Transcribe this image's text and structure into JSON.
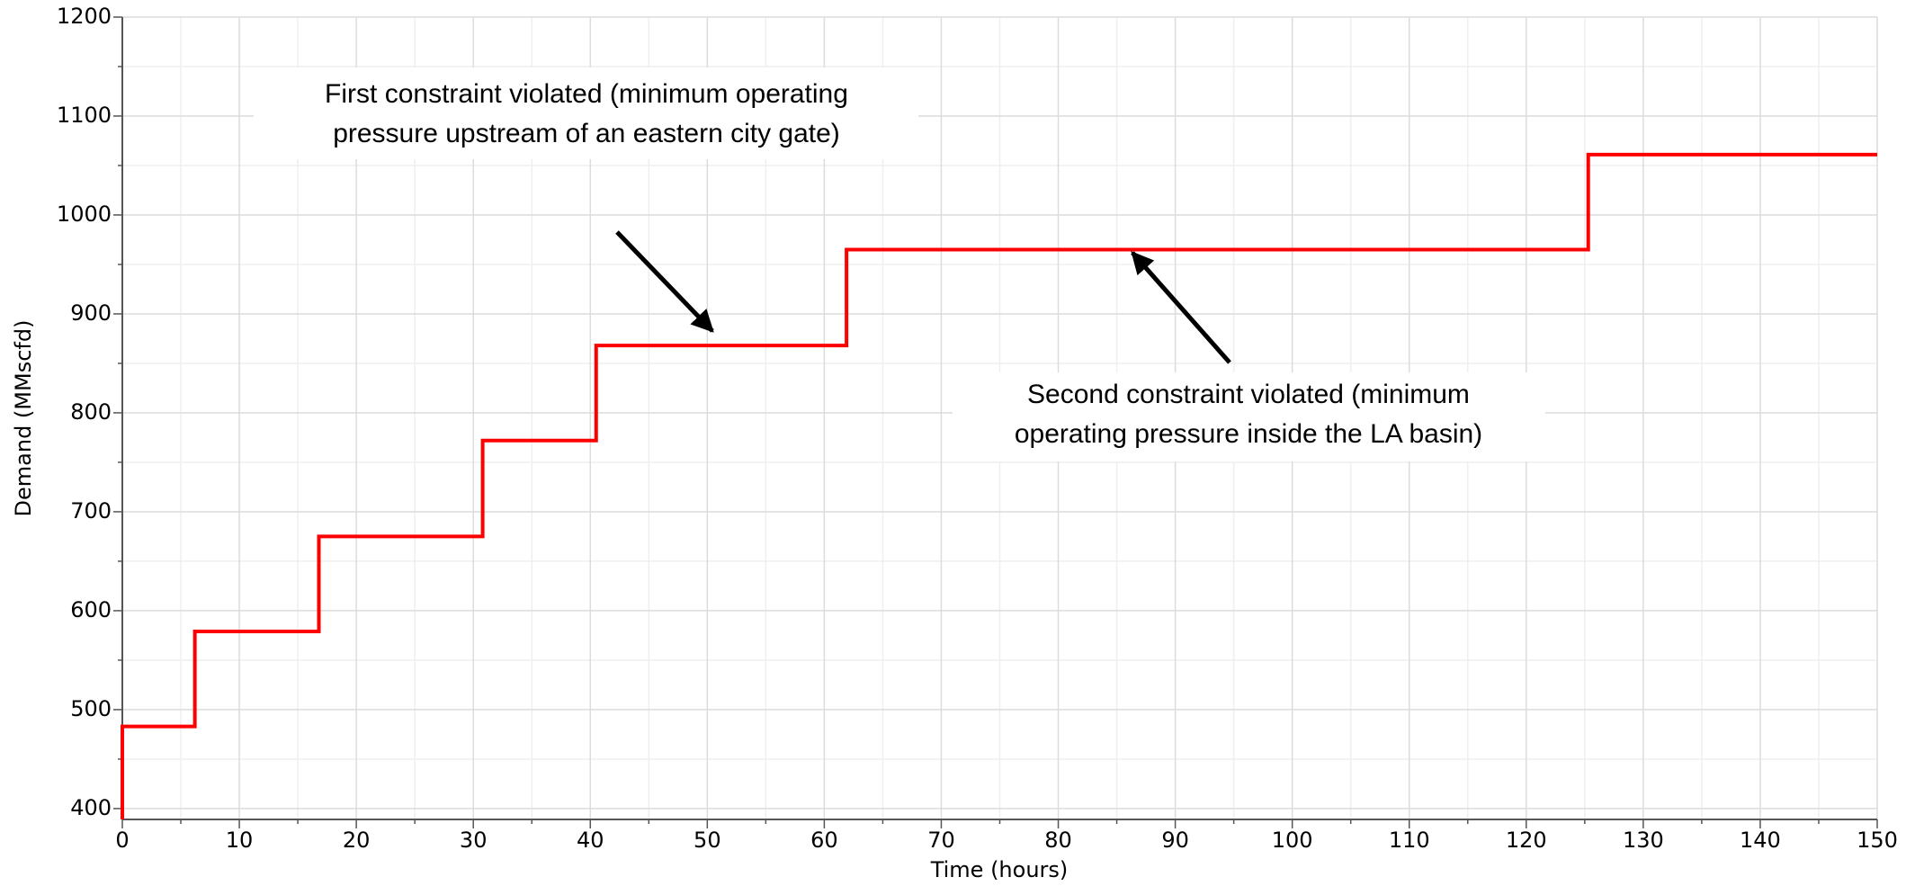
{
  "chart_data": {
    "type": "line",
    "x_label": "Time (hours)",
    "y_label": "Demand (MMscfd)",
    "xlim": [
      0,
      150
    ],
    "ylim": [
      389,
      1200
    ],
    "xticks": [
      0,
      10,
      20,
      30,
      40,
      50,
      60,
      70,
      80,
      90,
      100,
      110,
      120,
      130,
      140,
      150
    ],
    "yticks": [
      400,
      500,
      600,
      700,
      800,
      900,
      1000,
      1100,
      1200
    ],
    "grid": true,
    "series": [
      {
        "color": "#ff0000",
        "x": [
          0,
          0,
          6.2,
          6.2,
          16.8,
          16.8,
          30.8,
          30.8,
          40.5,
          40.5,
          61.9,
          61.9,
          125.3,
          125.3,
          150
        ],
        "values": [
          389,
          483,
          483,
          579,
          579,
          675,
          675,
          772,
          772,
          868,
          868,
          965,
          965,
          1061,
          1061
        ]
      }
    ],
    "annotations": [
      {
        "lines": [
          "First constraint violated (minimum operating",
          "pressure upstream of an eastern city gate)"
        ]
      },
      {
        "lines": [
          "Second constraint violated (minimum",
          "operating pressure inside the LA basin)"
        ]
      }
    ]
  }
}
